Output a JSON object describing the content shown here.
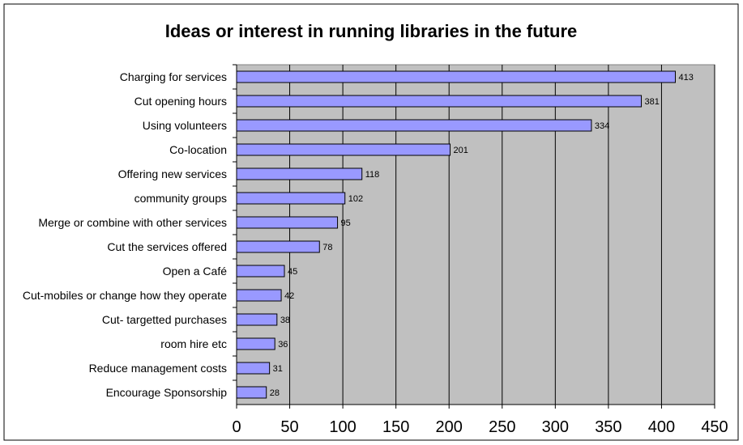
{
  "chart_data": {
    "type": "bar",
    "orientation": "horizontal",
    "title": "Ideas or interest in running libraries in the future",
    "xlabel": "",
    "ylabel": "",
    "xlim": [
      0,
      450
    ],
    "x_ticks": [
      0,
      50,
      100,
      150,
      200,
      250,
      300,
      350,
      400,
      450
    ],
    "grid": "vertical",
    "legend": "none",
    "colors": {
      "bar_fill": "#9999ff",
      "bar_stroke": "#000000",
      "plot_background": "#c0c0c0",
      "page_background": "#ffffff"
    },
    "categories": [
      "Charging for services",
      "Cut opening hours",
      "Using volunteers",
      "Co-location",
      "Offering new services",
      "community groups",
      "Merge or combine with other services",
      "Cut the services offered",
      "Open a Café",
      "Cut-mobiles or change how they operate",
      "Cut- targetted purchases",
      "room hire etc",
      "Reduce management costs",
      "Encourage Sponsorship"
    ],
    "values": [
      413,
      381,
      334,
      201,
      118,
      102,
      95,
      78,
      45,
      42,
      38,
      36,
      31,
      28
    ],
    "data_labels": [
      "413",
      "381",
      "334",
      "201",
      "118",
      "102",
      "95",
      "78",
      "45",
      "42",
      "38",
      "36",
      "31",
      "28"
    ]
  }
}
